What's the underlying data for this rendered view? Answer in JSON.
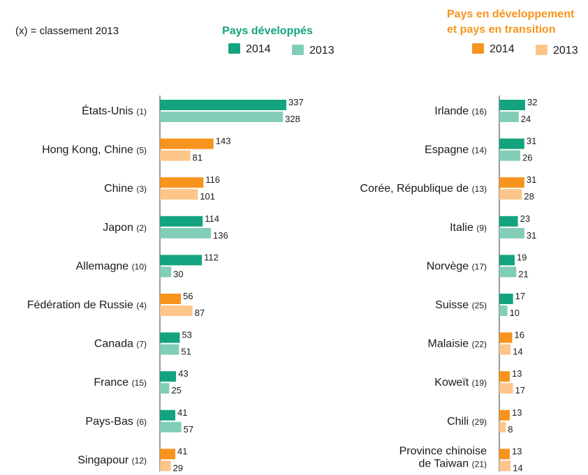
{
  "note": "(x) = classement 2013",
  "legend": [
    {
      "title": [
        "Pays développés"
      ],
      "title_color": "#14a37f",
      "labels": [
        "2014",
        "2013"
      ],
      "colors": [
        "#14a37f",
        "#82cdb7"
      ]
    },
    {
      "title": [
        "Pays en développement",
        "et pays en transition"
      ],
      "title_color": "#f7941d",
      "labels": [
        "2014",
        "2013"
      ],
      "colors": [
        "#f7941d",
        "#fdc58a"
      ]
    }
  ],
  "chart_data": [
    {
      "type": "bar",
      "orientation": "horizontal",
      "categories": [
        "États-Unis",
        "Hong Kong, Chine",
        "Chine",
        "Japon",
        "Allemagne",
        "Fédération de Russie",
        "Canada",
        "France",
        "Pays-Bas",
        "Singapour"
      ],
      "ranks": [
        "(1)",
        "(5)",
        "(3)",
        "(2)",
        "(10)",
        "(4)",
        "(7)",
        "(15)",
        "(6)",
        "(12)"
      ],
      "groups": [
        0,
        1,
        1,
        0,
        0,
        1,
        0,
        0,
        0,
        1
      ],
      "series": [
        {
          "name": "2014",
          "values": [
            337,
            143,
            116,
            114,
            112,
            56,
            53,
            43,
            41,
            41
          ]
        },
        {
          "name": "2013",
          "values": [
            328,
            81,
            101,
            136,
            30,
            87,
            51,
            25,
            57,
            29
          ]
        }
      ]
    },
    {
      "type": "bar",
      "orientation": "horizontal",
      "categories": [
        "Irlande",
        "Espagne",
        "Corée, République de",
        "Italie",
        "Norvège",
        "Suisse",
        "Malaisie",
        "Koweït",
        "Chili",
        [
          "Province chinoise",
          "de Taiwan"
        ]
      ],
      "ranks": [
        "(16)",
        "(14)",
        "(13)",
        "(9)",
        "(17)",
        "(25)",
        "(22)",
        "(19)",
        "(29)",
        "(21)"
      ],
      "groups": [
        0,
        0,
        1,
        0,
        0,
        0,
        1,
        1,
        1,
        1
      ],
      "series": [
        {
          "name": "2014",
          "values": [
            32,
            31,
            31,
            23,
            19,
            17,
            16,
            13,
            13,
            13
          ]
        },
        {
          "name": "2013",
          "values": [
            24,
            26,
            28,
            31,
            21,
            10,
            14,
            17,
            8,
            14
          ]
        }
      ]
    }
  ]
}
